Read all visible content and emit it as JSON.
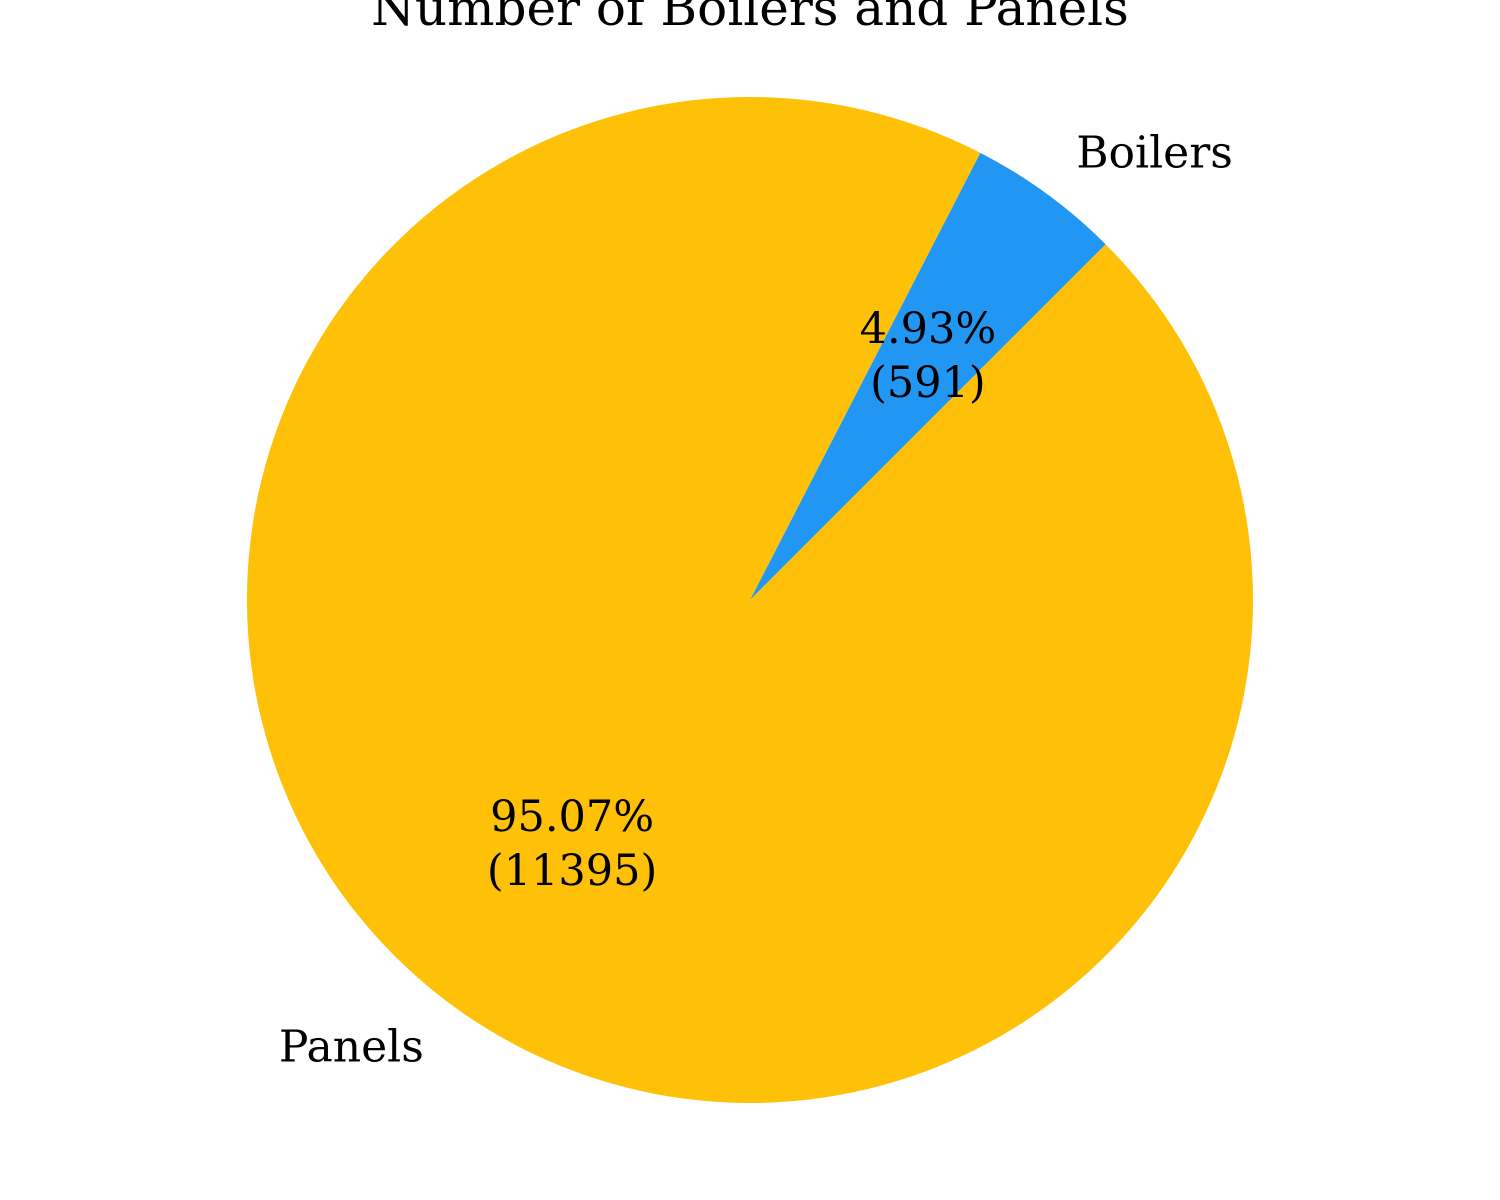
{
  "chart_data": {
    "type": "pie",
    "title": "Number of Boilers and Panels",
    "slices": [
      {
        "label": "Boilers",
        "value": 591,
        "percent_label": "4.93%",
        "count_label": "(591)",
        "color": "#2196F3"
      },
      {
        "label": "Panels",
        "value": 11395,
        "percent_label": "95.07%",
        "count_label": "(11395)",
        "color": "#FFC107"
      }
    ],
    "legend": "none"
  }
}
